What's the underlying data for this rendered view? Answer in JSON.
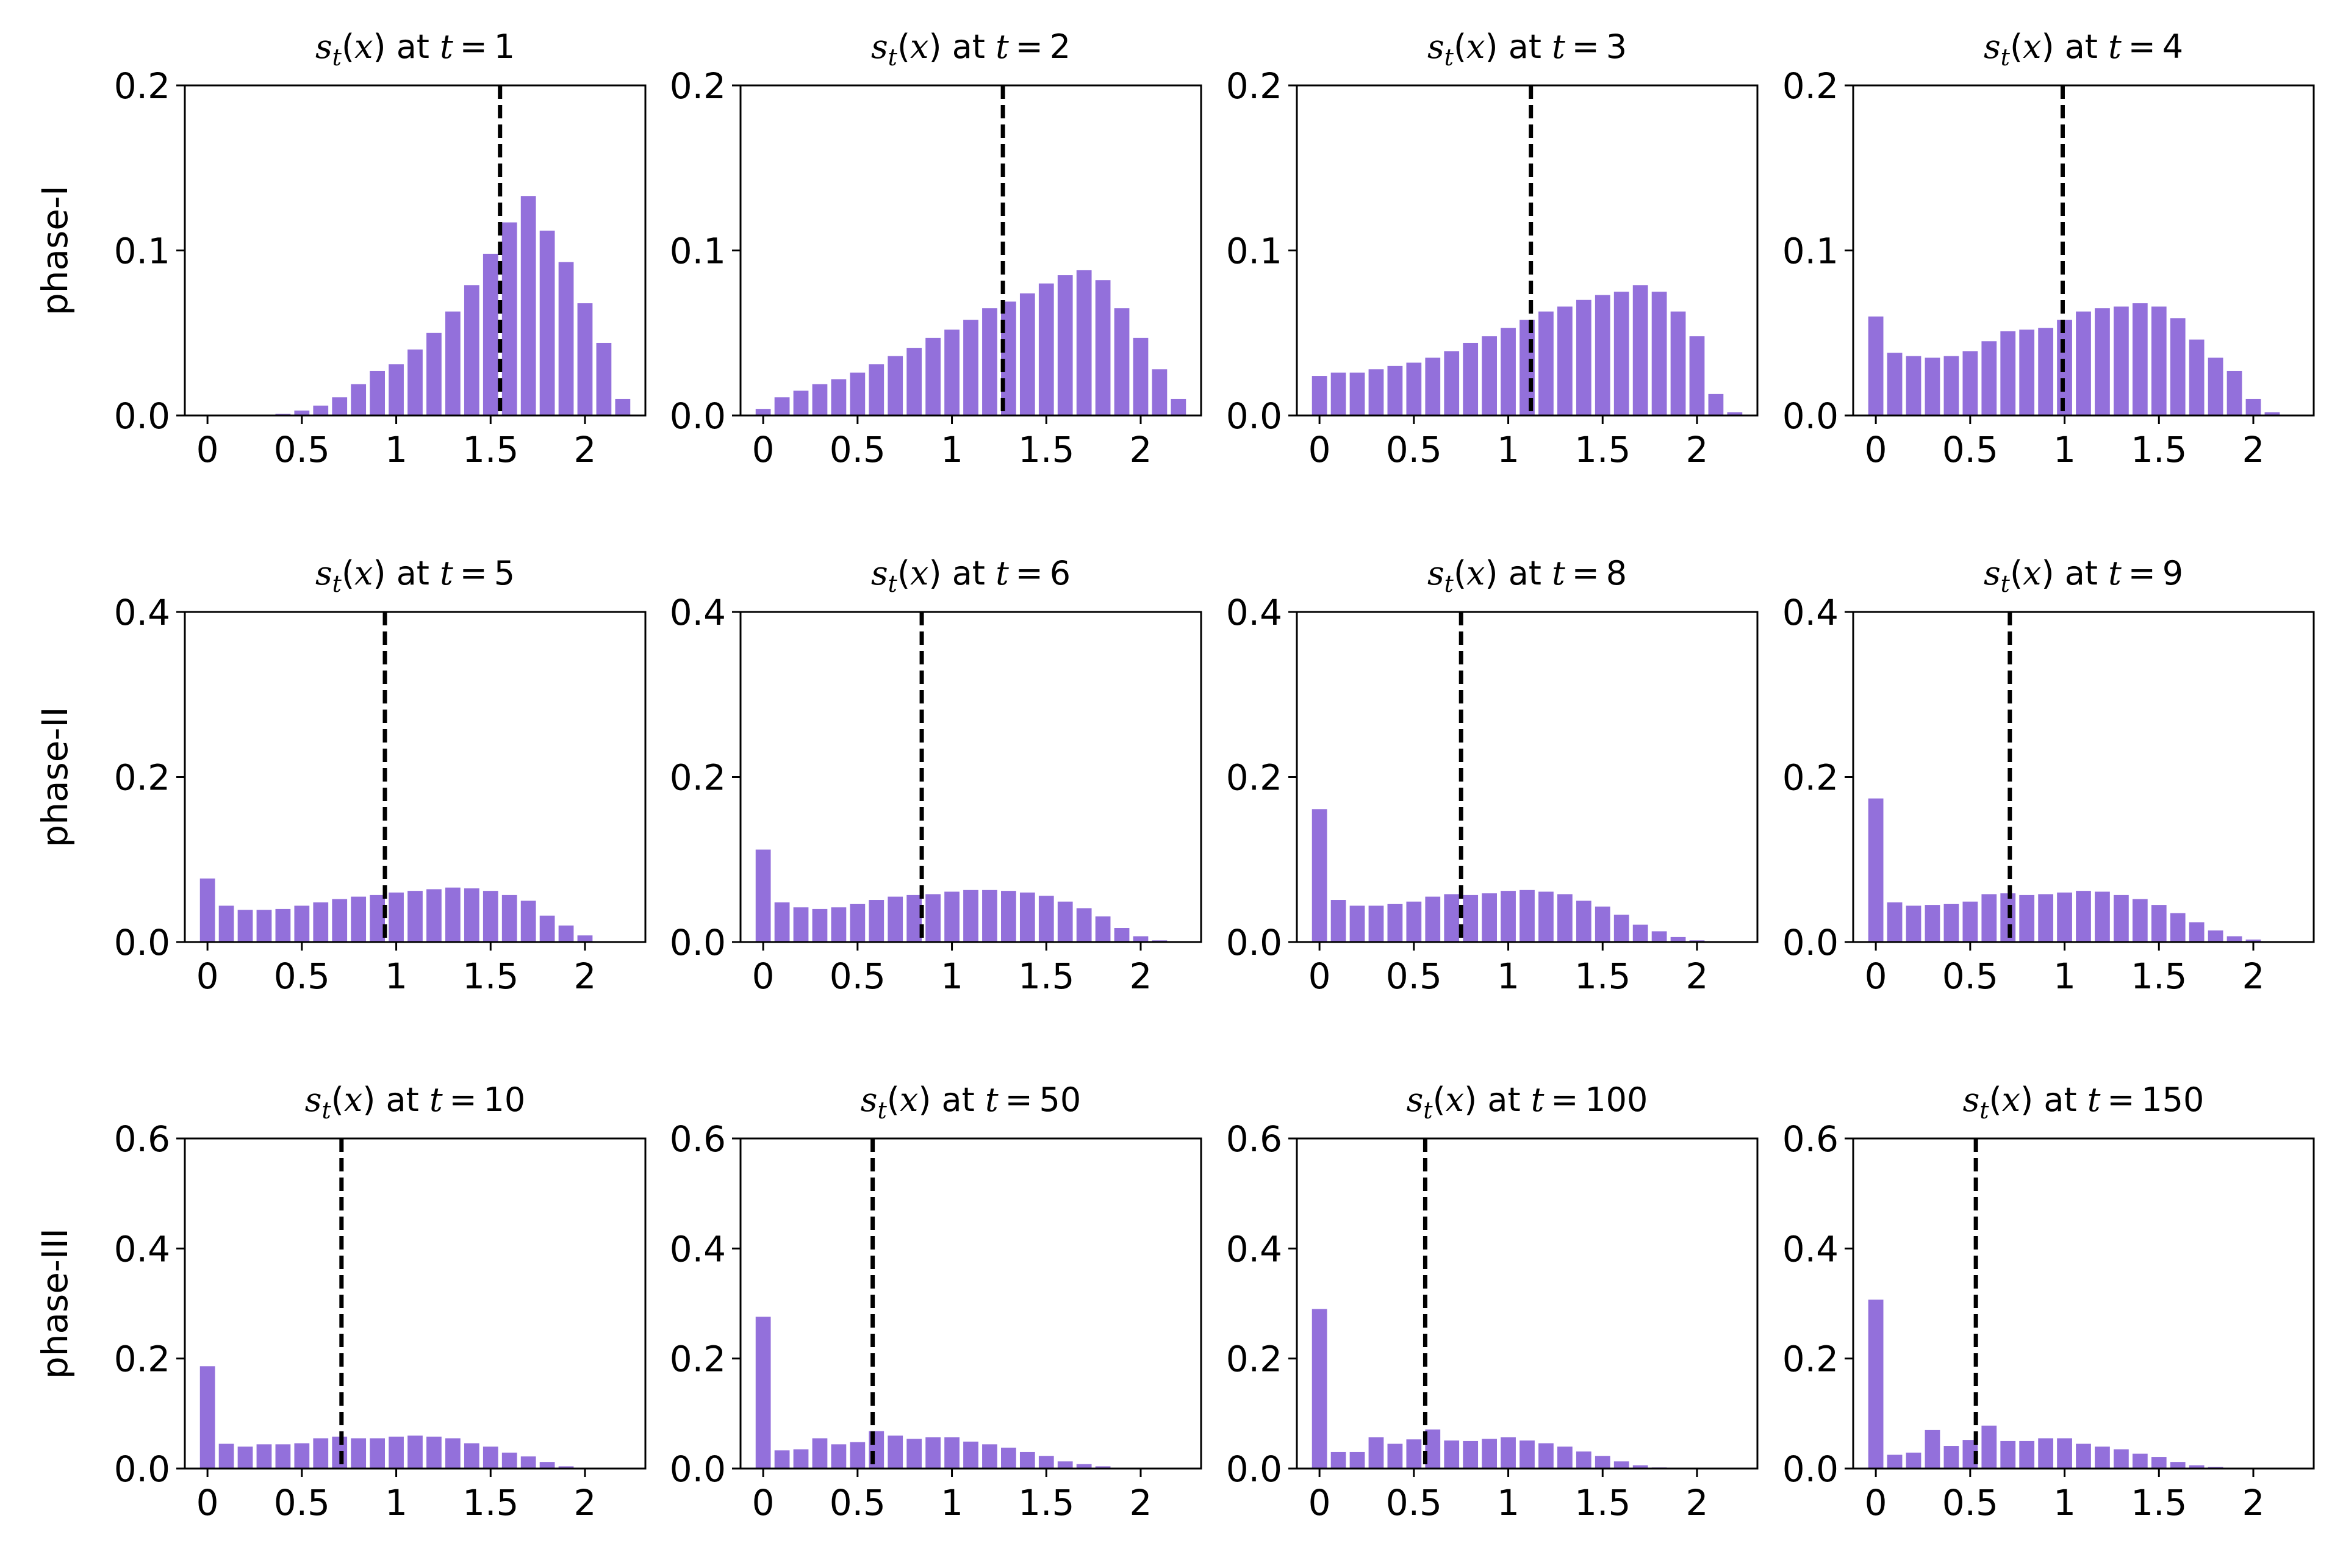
{
  "colors": {
    "bar": "#9370DB",
    "threshold_line": "#000000",
    "axes": "#000000",
    "background": "#ffffff"
  },
  "chart_data": {
    "type": "bar",
    "layout": "3x4 grid of histograms",
    "x_ticks": [
      "0",
      "0.5",
      "1",
      "1.5",
      "2"
    ],
    "x_tick_values": [
      0,
      0.5,
      1,
      1.5,
      2
    ],
    "xlim": [
      -0.12,
      2.32
    ],
    "bin_centers": [
      0.0,
      0.1,
      0.2,
      0.3,
      0.4,
      0.5,
      0.6,
      0.7,
      0.8,
      0.9,
      1.0,
      1.1,
      1.2,
      1.3,
      1.4,
      1.5,
      1.6,
      1.7,
      1.8,
      1.9,
      2.0,
      2.1,
      2.2
    ],
    "rows": [
      {
        "label": "phase-I",
        "ylim": [
          0,
          0.2
        ],
        "y_ticks": [
          "0.0",
          "0.1",
          "0.2"
        ],
        "y_tick_values": [
          0,
          0.1,
          0.2
        ],
        "panels": [
          {
            "t": "1",
            "threshold": 1.55,
            "values": [
              0,
              0,
              0,
              0,
              0.001,
              0.003,
              0.006,
              0.011,
              0.019,
              0.027,
              0.031,
              0.04,
              0.05,
              0.063,
              0.079,
              0.098,
              0.117,
              0.133,
              0.112,
              0.093,
              0.068,
              0.044,
              0.01
            ]
          },
          {
            "t": "2",
            "threshold": 1.27,
            "values": [
              0.004,
              0.011,
              0.015,
              0.019,
              0.022,
              0.026,
              0.031,
              0.036,
              0.041,
              0.047,
              0.052,
              0.058,
              0.065,
              0.069,
              0.074,
              0.08,
              0.085,
              0.088,
              0.082,
              0.065,
              0.047,
              0.028,
              0.01
            ]
          },
          {
            "t": "3",
            "threshold": 1.12,
            "values": [
              0.024,
              0.026,
              0.026,
              0.028,
              0.03,
              0.032,
              0.035,
              0.039,
              0.044,
              0.048,
              0.053,
              0.058,
              0.063,
              0.066,
              0.07,
              0.073,
              0.075,
              0.079,
              0.075,
              0.063,
              0.048,
              0.013,
              0.002
            ]
          },
          {
            "t": "4",
            "threshold": 0.99,
            "values": [
              0.06,
              0.038,
              0.036,
              0.035,
              0.036,
              0.039,
              0.045,
              0.051,
              0.052,
              0.053,
              0.058,
              0.063,
              0.065,
              0.066,
              0.068,
              0.066,
              0.059,
              0.046,
              0.035,
              0.027,
              0.01,
              0.002,
              0
            ]
          }
        ]
      },
      {
        "label": "phase-II",
        "ylim": [
          0,
          0.4
        ],
        "y_ticks": [
          "0.0",
          "0.2",
          "0.4"
        ],
        "y_tick_values": [
          0,
          0.2,
          0.4
        ],
        "panels": [
          {
            "t": "5",
            "threshold": 0.94,
            "values": [
              0.077,
              0.044,
              0.039,
              0.039,
              0.04,
              0.044,
              0.048,
              0.052,
              0.055,
              0.057,
              0.06,
              0.062,
              0.064,
              0.066,
              0.065,
              0.062,
              0.057,
              0.05,
              0.032,
              0.02,
              0.008,
              0.001,
              0
            ]
          },
          {
            "t": "6",
            "threshold": 0.84,
            "values": [
              0.112,
              0.048,
              0.042,
              0.04,
              0.042,
              0.046,
              0.051,
              0.055,
              0.057,
              0.058,
              0.061,
              0.063,
              0.063,
              0.062,
              0.06,
              0.056,
              0.049,
              0.041,
              0.031,
              0.017,
              0.007,
              0.002,
              0
            ]
          },
          {
            "t": "8",
            "threshold": 0.75,
            "values": [
              0.161,
              0.051,
              0.044,
              0.044,
              0.046,
              0.049,
              0.055,
              0.058,
              0.057,
              0.059,
              0.062,
              0.063,
              0.061,
              0.058,
              0.05,
              0.043,
              0.033,
              0.021,
              0.013,
              0.006,
              0.002,
              0,
              0
            ]
          },
          {
            "t": "9",
            "threshold": 0.71,
            "values": [
              0.174,
              0.048,
              0.044,
              0.045,
              0.046,
              0.049,
              0.058,
              0.059,
              0.057,
              0.058,
              0.06,
              0.062,
              0.061,
              0.057,
              0.052,
              0.045,
              0.035,
              0.024,
              0.014,
              0.007,
              0.003,
              0,
              0
            ]
          }
        ]
      },
      {
        "label": "phase-III",
        "ylim": [
          0,
          0.6
        ],
        "y_ticks": [
          "0.0",
          "0.2",
          "0.4",
          "0.6"
        ],
        "y_tick_values": [
          0,
          0.2,
          0.4,
          0.6
        ],
        "panels": [
          {
            "t": "10",
            "threshold": 0.71,
            "values": [
              0.186,
              0.045,
              0.04,
              0.044,
              0.044,
              0.046,
              0.055,
              0.058,
              0.055,
              0.055,
              0.058,
              0.06,
              0.058,
              0.055,
              0.046,
              0.04,
              0.029,
              0.022,
              0.012,
              0.004,
              0.001,
              0,
              0
            ]
          },
          {
            "t": "50",
            "threshold": 0.58,
            "values": [
              0.276,
              0.033,
              0.035,
              0.055,
              0.044,
              0.048,
              0.068,
              0.06,
              0.054,
              0.057,
              0.057,
              0.049,
              0.044,
              0.038,
              0.03,
              0.023,
              0.013,
              0.008,
              0.004,
              0.001,
              0,
              0,
              0
            ]
          },
          {
            "t": "100",
            "threshold": 0.56,
            "values": [
              0.29,
              0.03,
              0.03,
              0.057,
              0.045,
              0.053,
              0.071,
              0.051,
              0.05,
              0.054,
              0.057,
              0.051,
              0.046,
              0.04,
              0.031,
              0.023,
              0.013,
              0.006,
              0.002,
              0.001,
              0,
              0,
              0
            ]
          },
          {
            "t": "150",
            "threshold": 0.53,
            "values": [
              0.307,
              0.025,
              0.029,
              0.07,
              0.041,
              0.052,
              0.078,
              0.05,
              0.05,
              0.055,
              0.055,
              0.045,
              0.04,
              0.035,
              0.027,
              0.021,
              0.012,
              0.006,
              0.003,
              0.001,
              0,
              0,
              0
            ]
          }
        ]
      }
    ]
  }
}
